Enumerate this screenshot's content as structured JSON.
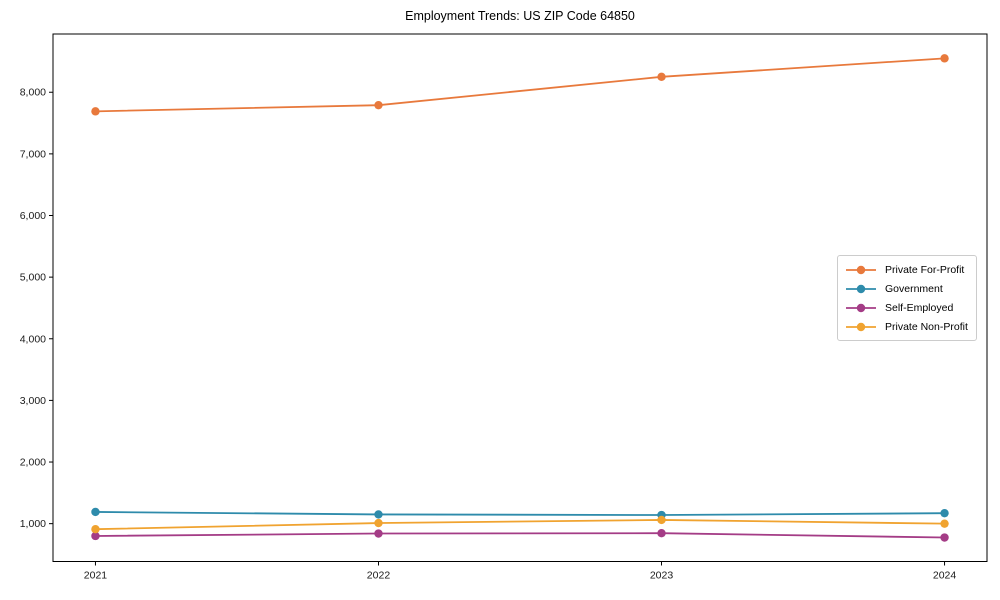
{
  "chart_data": {
    "type": "line",
    "title": "Employment Trends: US ZIP Code 64850",
    "xlabel": "",
    "ylabel": "",
    "x": [
      2021,
      2022,
      2023,
      2024
    ],
    "x_tick_labels": [
      "2021",
      "2022",
      "2023",
      "2024"
    ],
    "series": [
      {
        "name": "Private For-Profit",
        "color": "#E8793C",
        "values": [
          7690,
          7790,
          8250,
          8550
        ]
      },
      {
        "name": "Government",
        "color": "#2E8BAB",
        "values": [
          1190,
          1150,
          1140,
          1170
        ]
      },
      {
        "name": "Self-Employed",
        "color": "#A43C86",
        "values": [
          800,
          840,
          845,
          775
        ]
      },
      {
        "name": "Private Non-Profit",
        "color": "#F0A330",
        "values": [
          910,
          1010,
          1060,
          1000
        ]
      }
    ],
    "y_ticks": [
      1000,
      2000,
      3000,
      4000,
      5000,
      6000,
      7000,
      8000
    ],
    "y_tick_labels": [
      "1,000",
      "2,000",
      "3,000",
      "4,000",
      "5,000",
      "6,000",
      "7,000",
      "8,000"
    ],
    "xlim": [
      2020.85,
      2024.15
    ],
    "ylim": [
      386,
      8945
    ],
    "grid": false,
    "legend_position": "center right",
    "axis_color": "#000000",
    "tick_label_color": "#1a1a1a"
  }
}
